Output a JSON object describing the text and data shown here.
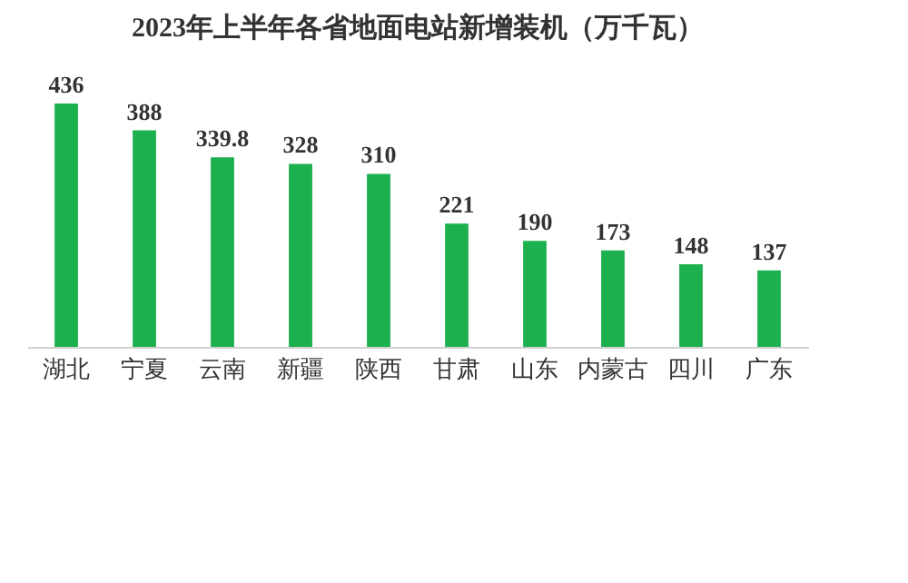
{
  "chart_data": {
    "type": "bar",
    "title": "2023年上半年各省地面电站新增装机（万千瓦）",
    "categories": [
      "湖北",
      "宁夏",
      "云南",
      "新疆",
      "陕西",
      "甘肃",
      "山东",
      "内蒙古",
      "四川",
      "广东"
    ],
    "values": [
      436,
      388,
      339.8,
      328,
      310,
      221,
      190,
      173,
      148,
      137
    ],
    "color": "#1db04f",
    "data_labels": true,
    "tick_labels": "x"
  }
}
